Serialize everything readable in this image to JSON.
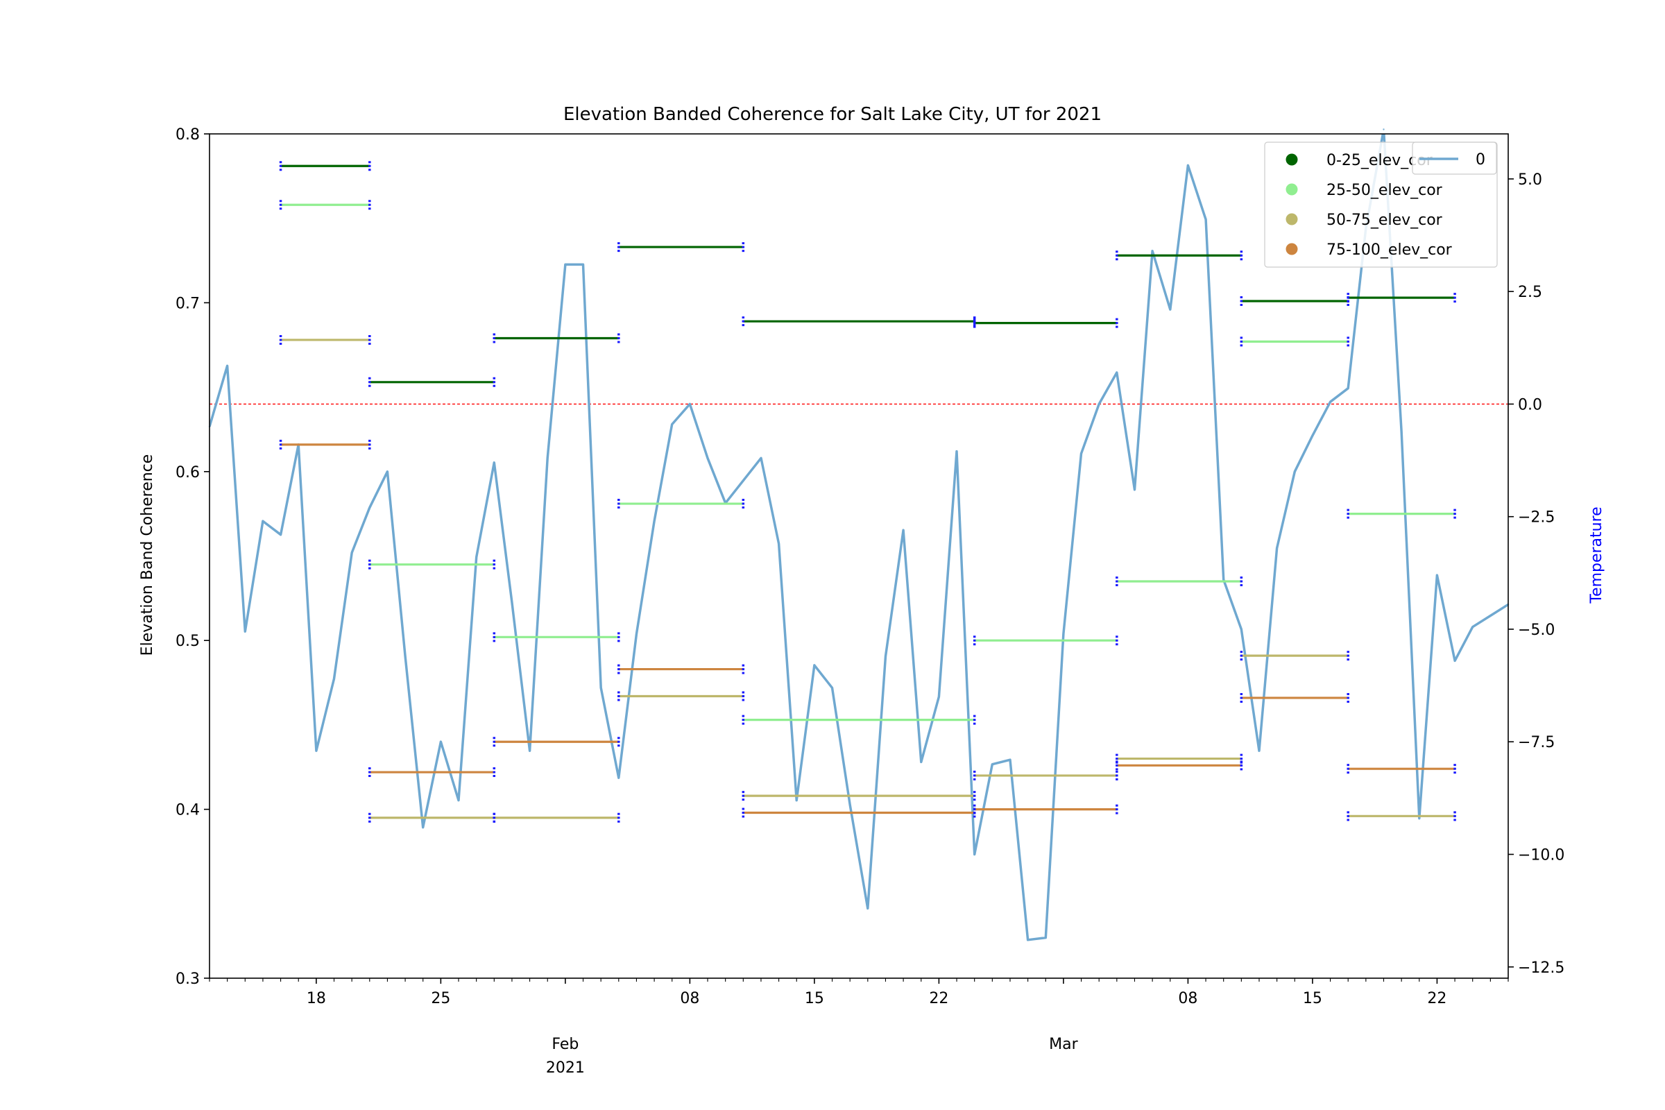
{
  "chart_data": {
    "type": "line",
    "title": "Elevation Banded Coherence for Salt Lake City, UT for 2021",
    "ylabel": "Elevation Band Coherence",
    "ylabel_right": "Temperature",
    "ylim": [
      0.3,
      0.8
    ],
    "ylim_right": [
      -12.75,
      6.0
    ],
    "xlim_days": [
      0,
      73
    ],
    "x_start_date": "2021-01-12",
    "grid": false,
    "reference_line": {
      "axis": "right",
      "value": 0.0,
      "color": "#ff0000",
      "style": "dashed"
    },
    "y_ticks": [
      {
        "value": 0.3,
        "label": "0.3"
      },
      {
        "value": 0.4,
        "label": "0.4"
      },
      {
        "value": 0.5,
        "label": "0.5"
      },
      {
        "value": 0.6,
        "label": "0.6"
      },
      {
        "value": 0.7,
        "label": "0.7"
      },
      {
        "value": 0.8,
        "label": "0.8"
      }
    ],
    "y_ticks_right": [
      {
        "value": 5.0,
        "label": "5.0"
      },
      {
        "value": 2.5,
        "label": "2.5"
      },
      {
        "value": 0.0,
        "label": "0.0"
      },
      {
        "value": -2.5,
        "label": "−2.5"
      },
      {
        "value": -5.0,
        "label": "−5.0"
      },
      {
        "value": -7.5,
        "label": "−7.5"
      },
      {
        "value": -10.0,
        "label": "−10.0"
      },
      {
        "value": -12.5,
        "label": "−12.5"
      }
    ],
    "x_ticks": [
      {
        "day": 6,
        "label": "18"
      },
      {
        "day": 13,
        "label": "25"
      },
      {
        "day": 27,
        "label": "08"
      },
      {
        "day": 34,
        "label": "15"
      },
      {
        "day": 41,
        "label": "22"
      },
      {
        "day": 55,
        "label": "08"
      },
      {
        "day": 62,
        "label": "15"
      },
      {
        "day": 69,
        "label": "22"
      }
    ],
    "x_major_labels": [
      {
        "day": 20,
        "line1": "Feb",
        "line2": "2021"
      },
      {
        "day": 48,
        "line1": "Mar",
        "line2": ""
      }
    ],
    "legend": [
      {
        "label": "0-25_elev_cor",
        "color": "#006400"
      },
      {
        "label": "25-50_elev_cor",
        "color": "#90ee90"
      },
      {
        "label": "50-75_elev_cor",
        "color": "#bdb76b"
      },
      {
        "label": "75-100_elev_cor",
        "color": "#cd853f"
      }
    ],
    "legend_right": [
      {
        "label": "0",
        "color": "#6fa8d0"
      }
    ],
    "band_series": [
      {
        "name": "0-25_elev_cor",
        "color": "#006400",
        "segments": [
          {
            "start": 4,
            "end": 9,
            "value": 0.781
          },
          {
            "start": 9,
            "end": 16,
            "value": 0.653
          },
          {
            "start": 16,
            "end": 23,
            "value": 0.679
          },
          {
            "start": 23,
            "end": 30,
            "value": 0.733
          },
          {
            "start": 30,
            "end": 43,
            "value": 0.689
          },
          {
            "start": 43,
            "end": 51,
            "value": 0.688
          },
          {
            "start": 51,
            "end": 58,
            "value": 0.728
          },
          {
            "start": 58,
            "end": 64,
            "value": 0.701
          },
          {
            "start": 64,
            "end": 70,
            "value": 0.703
          }
        ]
      },
      {
        "name": "25-50_elev_cor",
        "color": "#90ee90",
        "segments": [
          {
            "start": 4,
            "end": 9,
            "value": 0.758
          },
          {
            "start": 9,
            "end": 16,
            "value": 0.545
          },
          {
            "start": 16,
            "end": 23,
            "value": 0.502
          },
          {
            "start": 23,
            "end": 30,
            "value": 0.581
          },
          {
            "start": 30,
            "end": 43,
            "value": 0.453
          },
          {
            "start": 43,
            "end": 51,
            "value": 0.5
          },
          {
            "start": 51,
            "end": 58,
            "value": 0.535
          },
          {
            "start": 58,
            "end": 64,
            "value": 0.677
          },
          {
            "start": 64,
            "end": 70,
            "value": 0.575
          }
        ]
      },
      {
        "name": "50-75_elev_cor",
        "color": "#bdb76b",
        "segments": [
          {
            "start": 4,
            "end": 9,
            "value": 0.678
          },
          {
            "start": 9,
            "end": 16,
            "value": 0.395
          },
          {
            "start": 16,
            "end": 23,
            "value": 0.395
          },
          {
            "start": 23,
            "end": 30,
            "value": 0.467
          },
          {
            "start": 30,
            "end": 43,
            "value": 0.408
          },
          {
            "start": 43,
            "end": 51,
            "value": 0.42
          },
          {
            "start": 51,
            "end": 58,
            "value": 0.43
          },
          {
            "start": 58,
            "end": 64,
            "value": 0.491
          },
          {
            "start": 64,
            "end": 70,
            "value": 0.396
          }
        ]
      },
      {
        "name": "75-100_elev_cor",
        "color": "#cd853f",
        "segments": [
          {
            "start": 4,
            "end": 9,
            "value": 0.616
          },
          {
            "start": 9,
            "end": 16,
            "value": 0.422
          },
          {
            "start": 16,
            "end": 23,
            "value": 0.44
          },
          {
            "start": 23,
            "end": 30,
            "value": 0.483
          },
          {
            "start": 30,
            "end": 43,
            "value": 0.398
          },
          {
            "start": 43,
            "end": 51,
            "value": 0.4
          },
          {
            "start": 51,
            "end": 58,
            "value": 0.426
          },
          {
            "start": 58,
            "end": 64,
            "value": 0.466
          },
          {
            "start": 64,
            "end": 70,
            "value": 0.424
          }
        ]
      }
    ],
    "temperature_series": {
      "name": "0",
      "color": "#6fa8d0",
      "x": [
        0,
        1,
        2,
        3,
        4,
        5,
        6,
        7,
        8,
        9,
        10,
        11,
        12,
        13,
        14,
        15,
        16,
        17,
        18,
        19,
        20,
        21,
        22,
        23,
        24,
        25,
        26,
        27,
        28,
        29,
        30,
        31,
        32,
        33,
        34,
        35,
        36,
        37,
        38,
        39,
        40,
        41,
        42,
        43,
        44,
        45,
        46,
        47,
        48,
        49,
        50,
        51,
        52,
        53,
        54,
        55,
        56,
        57,
        58,
        59,
        60,
        61,
        62,
        63,
        64,
        65,
        66,
        67,
        68,
        69,
        70,
        71,
        72,
        73
      ],
      "values": [
        -0.5,
        0.85,
        -5.05,
        -2.6,
        -2.9,
        -0.9,
        -7.7,
        -6.1,
        -3.3,
        -2.3,
        -1.5,
        -5.6,
        -9.4,
        -7.5,
        -8.8,
        -3.4,
        -1.3,
        -4.4,
        -7.7,
        -1.2,
        3.1,
        3.1,
        -6.3,
        -8.3,
        -5.1,
        -2.6,
        -0.45,
        0.0,
        -1.2,
        -2.2,
        -1.7,
        -1.2,
        -3.1,
        -8.8,
        -5.8,
        -6.3,
        -8.9,
        -11.2,
        -5.6,
        -2.8,
        -7.95,
        -6.5,
        -1.05,
        -10.0,
        -8.0,
        -7.9,
        -11.9,
        -11.85,
        -5.1,
        -1.1,
        0.0,
        0.7,
        -1.9,
        3.4,
        2.1,
        5.3,
        4.1,
        -3.9,
        -5.0,
        -7.7,
        -3.2,
        -1.5,
        -0.7,
        0.05,
        0.35,
        3.9,
        6.1,
        -0.6,
        -9.2,
        -3.8,
        -5.7,
        -4.95,
        -4.7,
        -4.45
      ]
    }
  }
}
